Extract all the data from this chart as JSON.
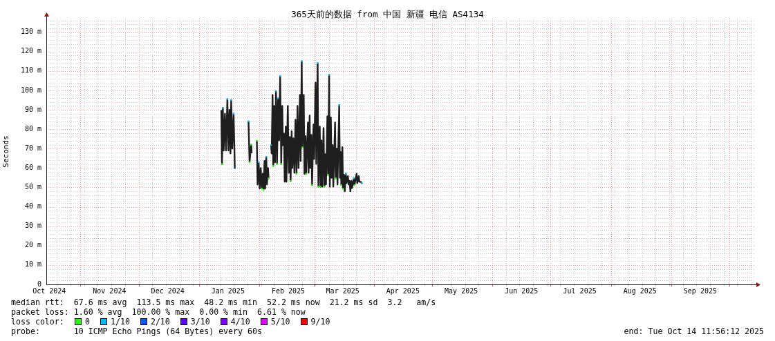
{
  "chart_data": {
    "type": "line",
    "title": "365天前的数据 from 中国 新疆 电信 AS4134",
    "ylabel": "Seconds",
    "legend_title": "loss color:",
    "legend": "bottom",
    "grid": true,
    "annotations": [
      "median rtt:  67.6 ms avg  113.5 ms max  48.2 ms min  52.2 ms now  21.2 ms sd  3.2   am/s",
      "packet loss: 1.60 % avg  100.00 % max  0.00 % min  6.61 % now",
      "probe:       10 ICMP Echo Pings (64 Bytes) every 60s",
      "end: Tue Oct 14 11:56:12 2025"
    ],
    "xlim": [
      "2024-10-14T12:00",
      "2025-10-14T12:00"
    ],
    "xticks": [
      {
        "value": "2024-10-16",
        "label": "Oct 2024"
      },
      {
        "value": "2024-10-20",
        "label": null
      },
      {
        "value": "2024-10-27",
        "label": null
      },
      {
        "value": "2024-11-01",
        "label": null
      },
      {
        "value": "2024-11-03",
        "label": null
      },
      {
        "value": "2024-11-10",
        "label": null
      },
      {
        "value": "2024-11-16",
        "label": "Nov 2024"
      },
      {
        "value": "2024-11-17",
        "label": null
      },
      {
        "value": "2024-11-24",
        "label": null
      },
      {
        "value": "2024-12-01",
        "label": null
      },
      {
        "value": "2024-12-08",
        "label": null
      },
      {
        "value": "2024-12-15",
        "label": null
      },
      {
        "value": "2024-12-16",
        "label": "Dec 2024"
      },
      {
        "value": "2024-12-22",
        "label": null
      },
      {
        "value": "2024-12-29",
        "label": null
      },
      {
        "value": "2025-01-01",
        "label": null
      },
      {
        "value": "2025-01-05",
        "label": null
      },
      {
        "value": "2025-01-12",
        "label": null
      },
      {
        "value": "2025-01-16",
        "label": "Jan 2025"
      },
      {
        "value": "2025-01-19",
        "label": null
      },
      {
        "value": "2025-01-26",
        "label": null
      },
      {
        "value": "2025-02-01",
        "label": null
      },
      {
        "value": "2025-02-02",
        "label": null
      },
      {
        "value": "2025-02-09",
        "label": null
      },
      {
        "value": "2025-02-16",
        "label": "Feb 2025"
      },
      {
        "value": "2025-02-16",
        "label": null
      },
      {
        "value": "2025-02-23",
        "label": null
      },
      {
        "value": "2025-03-01",
        "label": null
      },
      {
        "value": "2025-03-02",
        "label": null
      },
      {
        "value": "2025-03-09",
        "label": null
      },
      {
        "value": "2025-03-16",
        "label": "Mar 2025"
      },
      {
        "value": "2025-03-16",
        "label": null
      },
      {
        "value": "2025-03-23",
        "label": null
      },
      {
        "value": "2025-03-30",
        "label": null
      },
      {
        "value": "2025-04-01",
        "label": null
      },
      {
        "value": "2025-04-06",
        "label": null
      },
      {
        "value": "2025-04-13",
        "label": null
      },
      {
        "value": "2025-04-16",
        "label": "Apr 2025"
      },
      {
        "value": "2025-04-20",
        "label": null
      },
      {
        "value": "2025-04-27",
        "label": null
      },
      {
        "value": "2025-05-01",
        "label": null
      },
      {
        "value": "2025-05-04",
        "label": null
      },
      {
        "value": "2025-05-11",
        "label": null
      },
      {
        "value": "2025-05-16",
        "label": "May 2025"
      },
      {
        "value": "2025-05-18",
        "label": null
      },
      {
        "value": "2025-05-25",
        "label": null
      },
      {
        "value": "2025-06-01",
        "label": null
      },
      {
        "value": "2025-06-08",
        "label": null
      },
      {
        "value": "2025-06-15",
        "label": null
      },
      {
        "value": "2025-06-16",
        "label": "Jun 2025"
      },
      {
        "value": "2025-06-22",
        "label": null
      },
      {
        "value": "2025-06-29",
        "label": null
      },
      {
        "value": "2025-07-01",
        "label": null
      },
      {
        "value": "2025-07-06",
        "label": null
      },
      {
        "value": "2025-07-13",
        "label": null
      },
      {
        "value": "2025-07-16",
        "label": "Jul 2025"
      },
      {
        "value": "2025-07-20",
        "label": null
      },
      {
        "value": "2025-07-27",
        "label": null
      },
      {
        "value": "2025-08-01",
        "label": null
      },
      {
        "value": "2025-08-03",
        "label": null
      },
      {
        "value": "2025-08-10",
        "label": null
      },
      {
        "value": "2025-08-16",
        "label": "Aug 2025"
      },
      {
        "value": "2025-08-17",
        "label": null
      },
      {
        "value": "2025-08-24",
        "label": null
      },
      {
        "value": "2025-08-31",
        "label": null
      },
      {
        "value": "2025-09-01",
        "label": null
      },
      {
        "value": "2025-09-07",
        "label": null
      },
      {
        "value": "2025-09-14",
        "label": null
      },
      {
        "value": "2025-09-16",
        "label": "Sep 2025"
      },
      {
        "value": "2025-09-21",
        "label": null
      },
      {
        "value": "2025-09-28",
        "label": null
      },
      {
        "value": "2025-10-01",
        "label": null
      },
      {
        "value": "2025-10-05",
        "label": null
      },
      {
        "value": "2025-10-12",
        "label": null
      }
    ],
    "ylim": [
      0,
      137
    ],
    "yticks": [
      0,
      {
        "value": 2,
        "label": null
      },
      {
        "value": 4,
        "label": null
      },
      {
        "value": 6,
        "label": null
      },
      {
        "value": 8,
        "label": null
      },
      {
        "value": 10,
        "label": "10 m"
      },
      {
        "value": 12,
        "label": null
      },
      {
        "value": 14,
        "label": null
      },
      {
        "value": 16,
        "label": null
      },
      {
        "value": 18,
        "label": null
      },
      {
        "value": 20,
        "label": "20 m"
      },
      {
        "value": 22,
        "label": null
      },
      {
        "value": 24,
        "label": null
      },
      {
        "value": 26,
        "label": null
      },
      {
        "value": 28,
        "label": null
      },
      {
        "value": 30,
        "label": "30 m"
      },
      {
        "value": 32,
        "label": null
      },
      {
        "value": 34,
        "label": null
      },
      {
        "value": 36,
        "label": null
      },
      {
        "value": 38,
        "label": null
      },
      {
        "value": 40,
        "label": "40 m"
      },
      {
        "value": 42,
        "label": null
      },
      {
        "value": 44,
        "label": null
      },
      {
        "value": 46,
        "label": null
      },
      {
        "value": 48,
        "label": null
      },
      {
        "value": 50,
        "label": "50 m"
      },
      {
        "value": 52,
        "label": null
      },
      {
        "value": 54,
        "label": null
      },
      {
        "value": 56,
        "label": null
      },
      {
        "value": 58,
        "label": null
      },
      {
        "value": 60,
        "label": "60 m"
      },
      {
        "value": 62,
        "label": null
      },
      {
        "value": 64,
        "label": null
      },
      {
        "value": 66,
        "label": null
      },
      {
        "value": 68,
        "label": null
      },
      {
        "value": 70,
        "label": "70 m"
      },
      {
        "value": 72,
        "label": null
      },
      {
        "value": 74,
        "label": null
      },
      {
        "value": 76,
        "label": null
      },
      {
        "value": 78,
        "label": null
      },
      {
        "value": 80,
        "label": "80 m"
      },
      {
        "value": 82,
        "label": null
      },
      {
        "value": 84,
        "label": null
      },
      {
        "value": 86,
        "label": null
      },
      {
        "value": 88,
        "label": null
      },
      {
        "value": 90,
        "label": "90 m"
      },
      {
        "value": 92,
        "label": null
      },
      {
        "value": 94,
        "label": null
      },
      {
        "value": 96,
        "label": null
      },
      {
        "value": 98,
        "label": null
      },
      {
        "value": 100,
        "label": "100 m"
      },
      {
        "value": 102,
        "label": null
      },
      {
        "value": 104,
        "label": null
      },
      {
        "value": 106,
        "label": null
      },
      {
        "value": 108,
        "label": null
      },
      {
        "value": 110,
        "label": "110 m"
      },
      {
        "value": 112,
        "label": null
      },
      {
        "value": 114,
        "label": null
      },
      {
        "value": 116,
        "label": null
      },
      {
        "value": 118,
        "label": null
      },
      {
        "value": 120,
        "label": "120 m"
      },
      {
        "value": 122,
        "label": null
      },
      {
        "value": 124,
        "label": null
      },
      {
        "value": 126,
        "label": null
      },
      {
        "value": 128,
        "label": null
      },
      {
        "value": 130,
        "label": "130 m"
      },
      {
        "value": 132,
        "label": null
      },
      {
        "value": 134,
        "label": null
      },
      {
        "value": 136,
        "label": null
      }
    ],
    "series": [
      {
        "color": "#1e1e1e",
        "x": [
          "2025-01-12T13:00",
          "2025-01-12T22:00",
          "2025-01-13T08:00",
          "2025-01-13T18:00",
          "2025-01-14T10:00",
          "2025-01-14T23:00",
          "2025-01-15T16:00",
          "2025-01-16T05:00",
          "2025-01-16T18:00",
          "2025-01-17T06:00",
          "2025-01-17T15:00",
          "2025-01-18T04:00",
          "2025-01-18T21:00",
          "2025-01-19T12:00",
          "2025-01-22T12:00",
          "2025-01-26T13:00",
          "2025-01-27T02:00",
          "2025-01-27T22:00",
          "2025-01-28T04:00",
          "2025-01-29T00:00",
          "2025-01-30T20:00",
          "2025-01-31T05:00",
          "2025-01-31T18:00",
          "2025-02-01T07:00",
          "2025-02-01T20:00",
          "2025-02-02T09:00",
          "2025-02-02T21:00",
          "2025-02-03T06:00",
          "2025-02-03T19:00",
          "2025-02-04T03:00",
          "2025-02-04T16:00",
          "2025-02-05T01:00",
          "2025-02-05T14:00",
          "2025-02-05T21:00",
          "2025-02-06T12:00",
          "2025-02-07T04:00",
          "2025-02-07T11:00",
          "2025-02-07T22:00",
          "2025-02-08T06:00",
          "2025-02-08T19:00",
          "2025-02-09T04:00",
          "2025-02-09T17:00",
          "2025-02-10T05:00",
          "2025-02-10T18:00",
          "2025-02-11T07:00",
          "2025-02-11T20:00",
          "2025-02-12T09:00",
          "2025-02-12T22:00",
          "2025-02-13T06:00",
          "2025-02-13T19:00",
          "2025-02-14T04:00",
          "2025-02-14T17:00",
          "2025-02-15T01:00",
          "2025-02-15T18:00",
          "2025-02-16T07:00",
          "2025-02-16T20:00",
          "2025-02-17T05:00",
          "2025-02-17T18:00",
          "2025-02-18T02:00",
          "2025-02-18T15:00",
          "2025-02-19T04:00",
          "2025-02-19T17:00",
          "2025-02-20T06:00",
          "2025-02-20T18:00",
          "2025-02-21T07:00",
          "2025-02-22T00:00",
          "2025-02-22T09:00",
          "2025-02-22T22:00",
          "2025-02-23T06:00",
          "2025-02-23T23:00",
          "2025-02-24T08:00",
          "2025-02-24T21:00",
          "2025-02-25T05:00",
          "2025-02-26T03:00",
          "2025-02-26T11:00",
          "2025-02-27T00:00",
          "2025-02-27T09:00",
          "2025-02-27T22:00",
          "2025-02-28T06:00",
          "2025-03-01T00:00",
          "2025-03-01T08:00",
          "2025-03-02T01:00",
          "2025-03-02T10:00",
          "2025-03-03T03:00",
          "2025-03-03T12:00",
          "2025-03-04T05:00",
          "2025-03-04T14:00",
          "2025-03-05T02:00",
          "2025-03-05T11:00",
          "2025-03-06T04:00",
          "2025-03-06T13:00",
          "2025-03-07T02:00",
          "2025-03-07T10:00",
          "2025-03-08T03:00",
          "2025-03-08T12:00",
          "2025-03-09T01:00",
          "2025-03-09T09:00",
          "2025-03-09T22:00",
          "2025-03-10T07:00",
          "2025-03-10T20:00",
          "2025-03-11T04:00",
          "2025-03-12T02:00",
          "2025-03-12T10:00",
          "2025-03-12T23:00",
          "2025-03-13T08:00",
          "2025-03-14T05:00",
          "2025-03-14T14:00",
          "2025-03-14T23:00",
          "2025-03-15T07:00",
          "2025-03-15T20:00",
          "2025-03-16T05:00",
          "2025-03-16T17:00",
          "2025-03-17T02:00",
          "2025-03-17T15:00",
          "2025-03-17T23:00",
          "2025-03-18T17:00",
          "2025-03-19T01:00",
          "2025-03-19T14:00",
          "2025-03-19T23:00",
          "2025-03-20T12:00",
          "2025-03-20T20:00",
          "2025-03-21T18:00",
          "2025-03-22T02:00",
          "2025-03-23T04:00",
          "2025-03-23T12:00",
          "2025-03-24T06:00",
          "2025-03-24T14:00",
          "2025-03-25T07:00",
          "2025-03-25T20:00"
        ],
        "values": [
          89.5,
          62,
          91,
          69,
          88,
          69,
          95.5,
          69,
          90,
          67.5,
          95,
          70,
          88,
          60,
          null,
          84,
          63,
          72,
          68,
          null,
          74,
          51.5,
          63,
          49.4,
          60,
          49.4,
          57,
          48.7,
          63.6,
          49.4,
          65.8,
          51.5,
          60,
          54.7,
          null,
          71.8,
          67.5,
          97.7,
          61.1,
          92,
          62.9,
          99.5,
          62.2,
          95.9,
          74.2,
          107.3,
          62.2,
          92,
          71.8,
          77.8,
          52.9,
          81.3,
          52.9,
          92,
          57.5,
          76,
          53.3,
          78.9,
          60,
          75.3,
          57.5,
          84.9,
          57,
          92,
          60,
          97.7,
          63.6,
          115,
          70.7,
          97.7,
          57,
          76.4,
          57,
          83.5,
          57.5,
          87,
          60,
          77.1,
          51.2,
          82.4,
          64.7,
          104,
          62.2,
          114,
          50.4,
          81.3,
          50.4,
          74.2,
          50.4,
          80.6,
          50.4,
          67.1,
          51.5,
          86.7,
          56.5,
          108,
          50.4,
          86,
          55,
          71.8,
          50.4,
          83.5,
          54.7,
          70,
          51.5,
          92.4,
          55,
          68.2,
          51.2,
          70.7,
          49.4,
          56.5,
          48,
          57,
          52.2,
          55.8,
          51.5,
          53.3,
          48,
          53.3,
          49.7,
          54.7,
          51.2,
          57,
          52.2,
          55.8,
          52.9,
          52.9,
          52.2
        ]
      },
      {
        "type": "scatter",
        "name": "0",
        "color": "#26ff00",
        "marker": "square",
        "x": [
          "2025-01-12T22:00",
          "2025-01-27T02:00",
          "2025-01-27T22:00",
          "2025-01-30T20:00",
          "2025-02-02T09:00",
          "2025-02-03T06:00",
          "2025-02-05T21:00",
          "2025-02-08T06:00",
          "2025-02-10T05:00",
          "2025-02-12T09:00",
          "2025-02-17T05:00",
          "2025-02-20T06:00",
          "2025-02-23T06:00",
          "2025-02-25T05:00",
          "2025-02-28T06:00",
          "2025-03-03T12:00",
          "2025-03-04T14:00",
          "2025-03-06T13:00",
          "2025-03-08T12:00",
          "2025-03-12T10:00",
          "2025-03-15T07:00",
          "2025-03-16T05:00",
          "2025-03-22T02:00"
        ],
        "values": [
          62,
          63,
          72,
          74,
          49.4,
          48.7,
          54.7,
          61.1,
          62.2,
          62.2,
          53.3,
          57,
          70.7,
          57,
          51.2,
          50.4,
          50.4,
          50.4,
          56.5,
          54.7,
          51.2,
          49.4,
          51.2
        ]
      },
      {
        "type": "scatter",
        "name": "1/10",
        "color": "#00b8ff",
        "marker": "square",
        "x": [
          "2025-01-13T08:00",
          "2025-01-15T16:00",
          "2025-01-17T15:00",
          "2025-01-18T21:00",
          "2025-01-26T13:00",
          "2025-01-31T18:00",
          "2025-02-04T16:00",
          "2025-02-07T04:00",
          "2025-02-09T17:00",
          "2025-02-10T18:00",
          "2025-02-11T20:00",
          "2025-02-22T22:00",
          "2025-03-03T03:00",
          "2025-03-09T01:00",
          "2025-03-14T05:00",
          "2025-03-17T15:00",
          "2025-03-21T18:00",
          "2025-03-25T20:00"
        ],
        "values": [
          91,
          95.5,
          95,
          88,
          84,
          63,
          65.8,
          71.8,
          99.5,
          95.9,
          107.3,
          115,
          114,
          108,
          92.4,
          57,
          54.7,
          52.2
        ]
      },
      {
        "type": "scatter",
        "name": "2/10",
        "color": "#0059ff",
        "marker": "square",
        "x": [
          "2025-01-19T12:00"
        ],
        "values": [
          60
        ]
      },
      {
        "type": "scatter",
        "name": "3/10",
        "color": "#5e00ff",
        "marker": "square"
      },
      {
        "type": "scatter",
        "name": "4/10",
        "color": "#7e00ff",
        "marker": "square"
      },
      {
        "type": "scatter",
        "name": "5/10",
        "color": "#dd00ff",
        "marker": "square"
      },
      {
        "type": "scatter",
        "name": "9/10",
        "color": "#ff0000",
        "marker": "square"
      }
    ]
  }
}
